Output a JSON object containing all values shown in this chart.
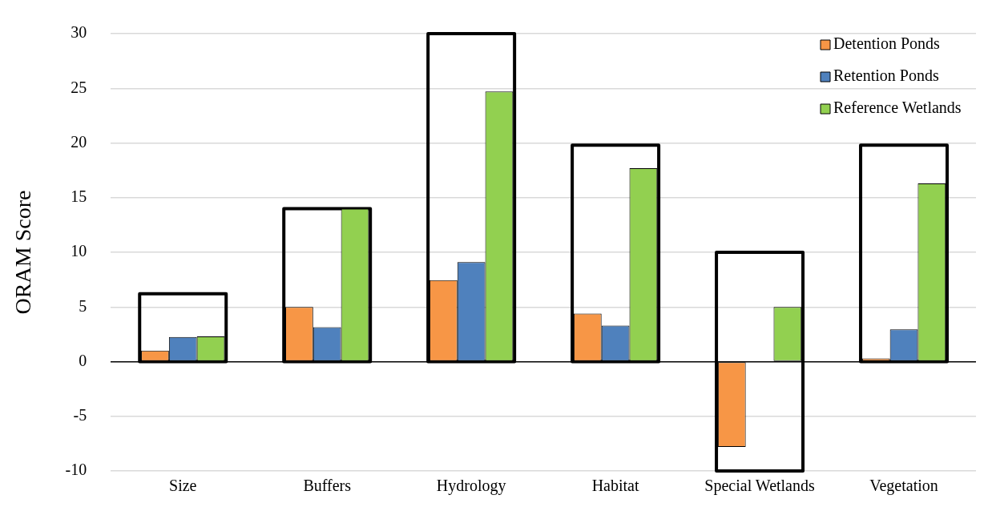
{
  "chart_data": {
    "type": "bar",
    "ylabel": "ORAM Score",
    "categories": [
      "Size",
      "Buffers",
      "Hydrology",
      "Habitat",
      "Special Wetlands",
      "Vegetation"
    ],
    "series": [
      {
        "name": "Detention Ponds",
        "color": "#f79646",
        "values": [
          1.0,
          5.0,
          7.45,
          4.4,
          -7.8,
          0.3
        ]
      },
      {
        "name": "Retention Ponds",
        "color": "#4f81bd",
        "values": [
          2.25,
          3.15,
          9.1,
          3.3,
          null,
          2.95
        ]
      },
      {
        "name": "Reference Wetlands",
        "color": "#92d050",
        "values": [
          2.3,
          14,
          24.7,
          17.7,
          5.0,
          16.3
        ]
      },
      {
        "type": "bar",
        "color": "#000000",
        "values": [
          6.2,
          14,
          30,
          19.8,
          20,
          19.8
        ],
        "base": [
          0,
          0,
          0,
          0,
          -10,
          0
        ]
      }
    ],
    "ylim": [
      -10,
      30
    ],
    "yticks": [
      -10,
      -5,
      0,
      5,
      10,
      15,
      20,
      25,
      30
    ],
    "grid": "y",
    "legend": "top right"
  }
}
